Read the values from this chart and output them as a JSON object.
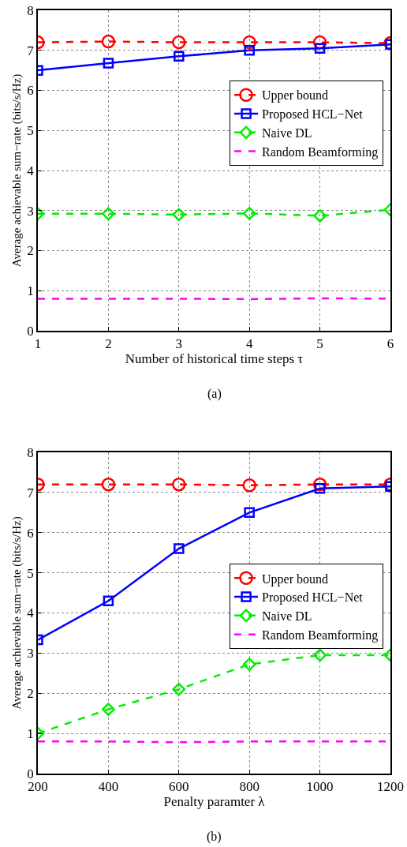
{
  "chart_data": [
    {
      "type": "line",
      "xlabel": "Number of historical time steps τ",
      "ylabel": "Average achievable sum−rate (bits/s/Hz)",
      "annotations": [
        "(a)"
      ],
      "x": [
        1,
        2,
        3,
        4,
        5,
        6
      ],
      "xlim": [
        1,
        6
      ],
      "xticks": [
        1,
        2,
        3,
        4,
        5,
        6
      ],
      "ylim": [
        0,
        8
      ],
      "yticks": [
        0,
        1,
        2,
        3,
        4,
        5,
        6,
        7,
        8
      ],
      "grid": true,
      "legend": "top right",
      "series": [
        {
          "name": "Upper bound",
          "color": "#ff0000",
          "line_style": "dashed",
          "marker": "circle",
          "values": [
            7.2,
            7.22,
            7.2,
            7.2,
            7.2,
            7.18
          ]
        },
        {
          "name": "Proposed HCL−Net",
          "color": "#0000ff",
          "line_style": "solid",
          "marker": "square",
          "values": [
            6.5,
            6.68,
            6.85,
            7.0,
            7.05,
            7.15
          ]
        },
        {
          "name": "Naive DL",
          "color": "#00ee00",
          "line_style": "dashed",
          "marker": "diamond",
          "values": [
            2.92,
            2.92,
            2.9,
            2.93,
            2.87,
            3.02
          ]
        },
        {
          "name": "Random Beamforming",
          "color": "#ff00ff",
          "line_style": "dashed",
          "marker": "none",
          "values": [
            0.8,
            0.8,
            0.8,
            0.79,
            0.81,
            0.8
          ]
        }
      ]
    },
    {
      "type": "line",
      "xlabel": "Penalty paramter λ",
      "ylabel": "Average achievable sum−rate (bits/s/Hz)",
      "annotations": [
        "(b)"
      ],
      "x": [
        200,
        400,
        600,
        800,
        1000,
        1200
      ],
      "xlim": [
        200,
        1200
      ],
      "xticks": [
        200,
        400,
        600,
        800,
        1000,
        1200
      ],
      "ylim": [
        0,
        8
      ],
      "yticks": [
        0,
        1,
        2,
        3,
        4,
        5,
        6,
        7,
        8
      ],
      "grid": true,
      "legend": "right",
      "series": [
        {
          "name": "Upper bound",
          "color": "#ff0000",
          "line_style": "dashed",
          "marker": "circle",
          "values": [
            7.2,
            7.2,
            7.2,
            7.18,
            7.2,
            7.2
          ]
        },
        {
          "name": "Proposed HCL−Net",
          "color": "#0000ff",
          "line_style": "solid",
          "marker": "square",
          "values": [
            3.33,
            4.3,
            5.6,
            6.5,
            7.1,
            7.15
          ]
        },
        {
          "name": "Naive DL",
          "color": "#00ee00",
          "line_style": "dashed",
          "marker": "diamond",
          "values": [
            1.0,
            1.6,
            2.1,
            2.72,
            2.95,
            2.95
          ]
        },
        {
          "name": "Random Beamforming",
          "color": "#ff00ff",
          "line_style": "dashed",
          "marker": "none",
          "values": [
            0.8,
            0.8,
            0.78,
            0.8,
            0.8,
            0.8
          ]
        }
      ]
    }
  ]
}
